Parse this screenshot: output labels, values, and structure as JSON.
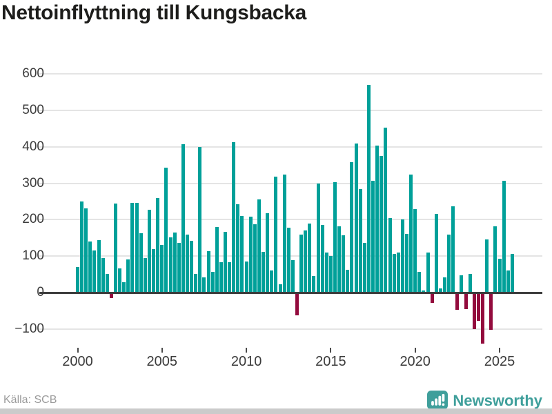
{
  "title": "Nettoinflyttning till Kungsbacka",
  "source": "Källa: SCB",
  "logo": {
    "text": "Newsworthy",
    "icon": "speech-bubble-bar-chart",
    "color": "#3f9f9b"
  },
  "colors": {
    "bar_positive": "#00a099",
    "bar_negative": "#930b3d",
    "grid": "#e4e4e4",
    "zero_line": "#3d3d3d",
    "title_text": "#1d1d1b",
    "axis_text": "#3b3b3b",
    "source_text": "#9a9a9a",
    "bottom_strip": "#cbcbcb"
  },
  "chart_data": {
    "type": "bar",
    "title": "Nettoinflyttning till Kungsbacka",
    "xlabel": "",
    "ylabel": "",
    "x_range": "quarterly 2000Q1–2025Q4",
    "grid": true,
    "legend": false,
    "ylim": [
      -150,
      620
    ],
    "yticks": [
      600,
      500,
      400,
      300,
      200,
      100,
      0,
      -100
    ],
    "yticklabels": [
      "600",
      "500",
      "400",
      "300",
      "200",
      "100",
      "0",
      "−100"
    ],
    "xticks": [
      2000,
      2005,
      2010,
      2015,
      2020,
      2025
    ],
    "xticklabels": [
      "2000",
      "2005",
      "2010",
      "2015",
      "2020",
      "2025"
    ],
    "categories": [
      "2000Q1",
      "2000Q2",
      "2000Q3",
      "2000Q4",
      "2001Q1",
      "2001Q2",
      "2001Q3",
      "2001Q4",
      "2002Q1",
      "2002Q2",
      "2002Q3",
      "2002Q4",
      "2003Q1",
      "2003Q2",
      "2003Q3",
      "2003Q4",
      "2004Q1",
      "2004Q2",
      "2004Q3",
      "2004Q4",
      "2005Q1",
      "2005Q2",
      "2005Q3",
      "2005Q4",
      "2006Q1",
      "2006Q2",
      "2006Q3",
      "2006Q4",
      "2007Q1",
      "2007Q2",
      "2007Q3",
      "2007Q4",
      "2008Q1",
      "2008Q2",
      "2008Q3",
      "2008Q4",
      "2009Q1",
      "2009Q2",
      "2009Q3",
      "2009Q4",
      "2010Q1",
      "2010Q2",
      "2010Q3",
      "2010Q4",
      "2011Q1",
      "2011Q2",
      "2011Q3",
      "2011Q4",
      "2012Q1",
      "2012Q2",
      "2012Q3",
      "2012Q4",
      "2013Q1",
      "2013Q2",
      "2013Q3",
      "2013Q4",
      "2014Q1",
      "2014Q2",
      "2014Q3",
      "2014Q4",
      "2015Q1",
      "2015Q2",
      "2015Q3",
      "2015Q4",
      "2016Q1",
      "2016Q2",
      "2016Q3",
      "2016Q4",
      "2017Q1",
      "2017Q2",
      "2017Q3",
      "2017Q4",
      "2018Q1",
      "2018Q2",
      "2018Q3",
      "2018Q4",
      "2019Q1",
      "2019Q2",
      "2019Q3",
      "2019Q4",
      "2020Q1",
      "2020Q2",
      "2020Q3",
      "2020Q4",
      "2021Q1",
      "2021Q2",
      "2021Q3",
      "2021Q4",
      "2022Q1",
      "2022Q2",
      "2022Q3",
      "2022Q4",
      "2023Q1",
      "2023Q2",
      "2023Q3",
      "2023Q4",
      "2024Q1",
      "2024Q2",
      "2024Q3",
      "2024Q4",
      "2025Q1",
      "2025Q2",
      "2025Q3",
      "2025Q4"
    ],
    "values": [
      70,
      250,
      232,
      140,
      115,
      144,
      95,
      52,
      -13,
      244,
      66,
      29,
      91,
      246,
      246,
      163,
      94,
      227,
      119,
      259,
      130,
      342,
      152,
      164,
      136,
      408,
      159,
      142,
      51,
      400,
      42,
      113,
      56,
      179,
      84,
      167,
      83,
      413,
      242,
      211,
      85,
      209,
      188,
      256,
      111,
      217,
      61,
      318,
      23,
      323,
      178,
      89,
      -60,
      160,
      170,
      189,
      45,
      300,
      185,
      110,
      101,
      303,
      181,
      157,
      62,
      358,
      410,
      285,
      137,
      570,
      306,
      404,
      375,
      452,
      205,
      107,
      109,
      200,
      161,
      323,
      230,
      56,
      6,
      109,
      -27,
      216,
      12,
      42,
      159,
      236,
      -46,
      47,
      -43,
      51,
      -99,
      -75,
      -138,
      146,
      -100,
      181,
      92,
      306,
      61,
      107
    ]
  }
}
